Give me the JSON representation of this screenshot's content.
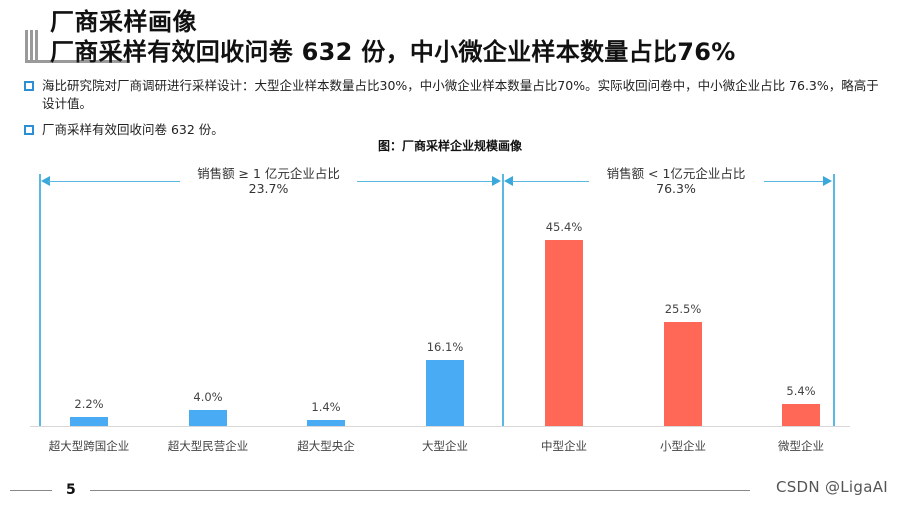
{
  "header": {
    "title_line1": "厂商采样画像",
    "title_line2": "厂商采样有效回收问卷 632 份，中小微企业样本数量占比76%"
  },
  "bullets": [
    {
      "icon": "hollow-square-bullet-icon",
      "text": "海比研究院对厂商调研进行采样设计：大型企业样本数量占比30%，中小微企业样本数量占比70%。实际收回问卷中，中小微企业占比 76.3%，略高于设计值。"
    },
    {
      "icon": "hollow-square-bullet-icon",
      "text": "厂商采样有效回收问卷 632 份。"
    }
  ],
  "colors": {
    "large_group": "#4aabf5",
    "small_group": "#ff6757",
    "bracket": "#5bb8e0",
    "bullet": "#2a8fd6"
  },
  "chart_data": {
    "type": "bar",
    "title": "图：厂商采样企业规模画像",
    "xlabel": "",
    "ylabel": "",
    "ylim": [
      0,
      50
    ],
    "grid": false,
    "categories": [
      "超大型跨国企业",
      "超大型民营企业",
      "超大型央企",
      "大型企业",
      "中型企业",
      "小型企业",
      "微型企业"
    ],
    "values": [
      2.2,
      4.0,
      1.4,
      16.1,
      45.4,
      25.5,
      5.4
    ],
    "value_labels": [
      "2.2%",
      "4.0%",
      "1.4%",
      "16.1%",
      "45.4%",
      "25.5%",
      "5.4%"
    ],
    "series": [
      {
        "name": "销售额 ≥ 1 亿元企业",
        "color": "#4aabf5",
        "categories": [
          "超大型跨国企业",
          "超大型民营企业",
          "超大型央企",
          "大型企业"
        ],
        "values": [
          2.2,
          4.0,
          1.4,
          16.1
        ]
      },
      {
        "name": "销售额 < 1亿元企业",
        "color": "#ff6757",
        "categories": [
          "中型企业",
          "小型企业",
          "微型企业"
        ],
        "values": [
          45.4,
          25.5,
          5.4
        ]
      }
    ],
    "annotations": [
      {
        "label": "销售额 ≥ 1 亿元企业占比",
        "value": "23.7%"
      },
      {
        "label": "销售额 < 1亿元企业占比",
        "value": "76.3%"
      }
    ]
  },
  "footer": {
    "page_number": "5",
    "watermark": "CSDN @LigaAI"
  }
}
